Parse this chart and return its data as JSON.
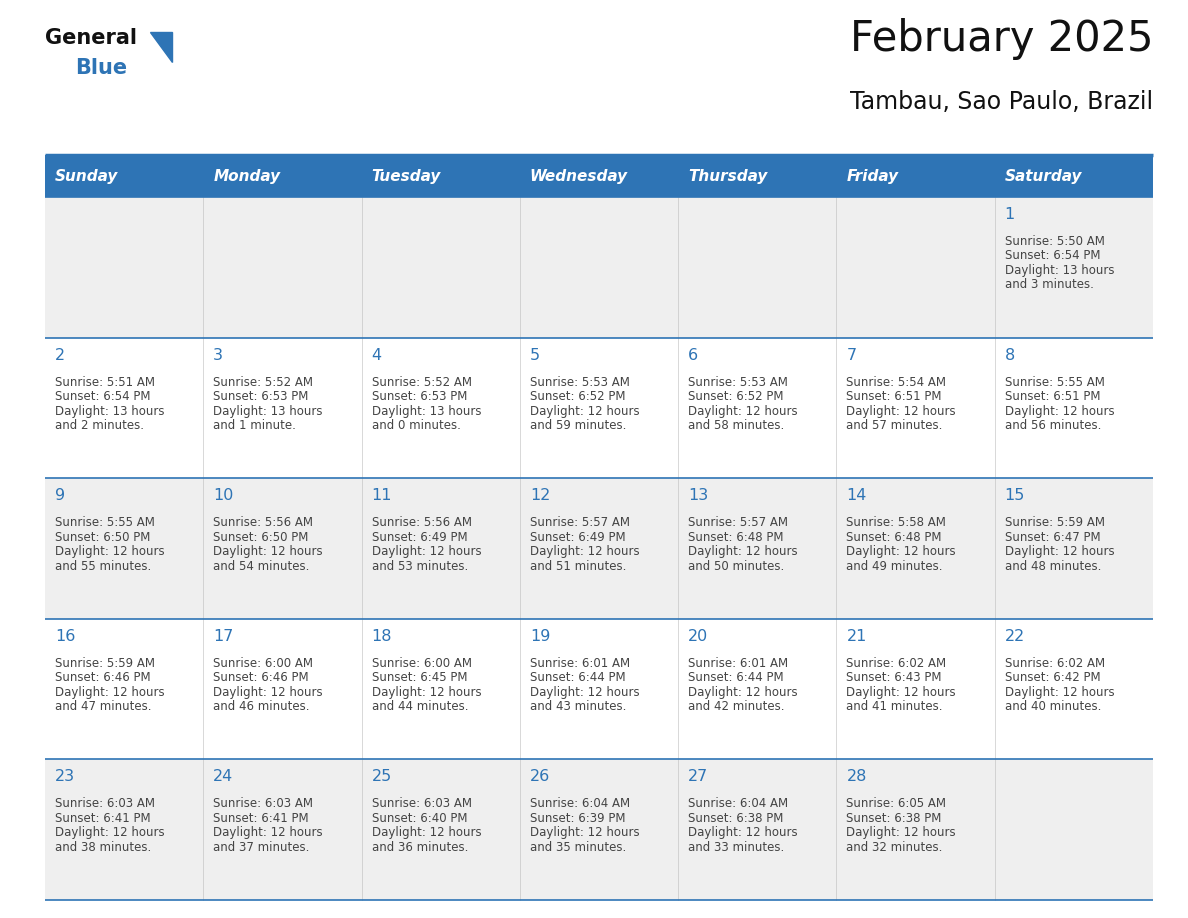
{
  "title": "February 2025",
  "subtitle": "Tambau, Sao Paulo, Brazil",
  "header_bg": "#2E74B5",
  "header_text_color": "#FFFFFF",
  "day_names": [
    "Sunday",
    "Monday",
    "Tuesday",
    "Wednesday",
    "Thursday",
    "Friday",
    "Saturday"
  ],
  "grid_line_color": "#2E74B5",
  "cell_bg_white": "#FFFFFF",
  "cell_bg_gray": "#EFEFEF",
  "text_color": "#444444",
  "date_color": "#2E74B5",
  "days": [
    {
      "day": 1,
      "col": 6,
      "row": 0,
      "sunrise": "5:50 AM",
      "sunset": "6:54 PM",
      "dl1": "Daylight: 13 hours",
      "dl2": "and 3 minutes."
    },
    {
      "day": 2,
      "col": 0,
      "row": 1,
      "sunrise": "5:51 AM",
      "sunset": "6:54 PM",
      "dl1": "Daylight: 13 hours",
      "dl2": "and 2 minutes."
    },
    {
      "day": 3,
      "col": 1,
      "row": 1,
      "sunrise": "5:52 AM",
      "sunset": "6:53 PM",
      "dl1": "Daylight: 13 hours",
      "dl2": "and 1 minute."
    },
    {
      "day": 4,
      "col": 2,
      "row": 1,
      "sunrise": "5:52 AM",
      "sunset": "6:53 PM",
      "dl1": "Daylight: 13 hours",
      "dl2": "and 0 minutes."
    },
    {
      "day": 5,
      "col": 3,
      "row": 1,
      "sunrise": "5:53 AM",
      "sunset": "6:52 PM",
      "dl1": "Daylight: 12 hours",
      "dl2": "and 59 minutes."
    },
    {
      "day": 6,
      "col": 4,
      "row": 1,
      "sunrise": "5:53 AM",
      "sunset": "6:52 PM",
      "dl1": "Daylight: 12 hours",
      "dl2": "and 58 minutes."
    },
    {
      "day": 7,
      "col": 5,
      "row": 1,
      "sunrise": "5:54 AM",
      "sunset": "6:51 PM",
      "dl1": "Daylight: 12 hours",
      "dl2": "and 57 minutes."
    },
    {
      "day": 8,
      "col": 6,
      "row": 1,
      "sunrise": "5:55 AM",
      "sunset": "6:51 PM",
      "dl1": "Daylight: 12 hours",
      "dl2": "and 56 minutes."
    },
    {
      "day": 9,
      "col": 0,
      "row": 2,
      "sunrise": "5:55 AM",
      "sunset": "6:50 PM",
      "dl1": "Daylight: 12 hours",
      "dl2": "and 55 minutes."
    },
    {
      "day": 10,
      "col": 1,
      "row": 2,
      "sunrise": "5:56 AM",
      "sunset": "6:50 PM",
      "dl1": "Daylight: 12 hours",
      "dl2": "and 54 minutes."
    },
    {
      "day": 11,
      "col": 2,
      "row": 2,
      "sunrise": "5:56 AM",
      "sunset": "6:49 PM",
      "dl1": "Daylight: 12 hours",
      "dl2": "and 53 minutes."
    },
    {
      "day": 12,
      "col": 3,
      "row": 2,
      "sunrise": "5:57 AM",
      "sunset": "6:49 PM",
      "dl1": "Daylight: 12 hours",
      "dl2": "and 51 minutes."
    },
    {
      "day": 13,
      "col": 4,
      "row": 2,
      "sunrise": "5:57 AM",
      "sunset": "6:48 PM",
      "dl1": "Daylight: 12 hours",
      "dl2": "and 50 minutes."
    },
    {
      "day": 14,
      "col": 5,
      "row": 2,
      "sunrise": "5:58 AM",
      "sunset": "6:48 PM",
      "dl1": "Daylight: 12 hours",
      "dl2": "and 49 minutes."
    },
    {
      "day": 15,
      "col": 6,
      "row": 2,
      "sunrise": "5:59 AM",
      "sunset": "6:47 PM",
      "dl1": "Daylight: 12 hours",
      "dl2": "and 48 minutes."
    },
    {
      "day": 16,
      "col": 0,
      "row": 3,
      "sunrise": "5:59 AM",
      "sunset": "6:46 PM",
      "dl1": "Daylight: 12 hours",
      "dl2": "and 47 minutes."
    },
    {
      "day": 17,
      "col": 1,
      "row": 3,
      "sunrise": "6:00 AM",
      "sunset": "6:46 PM",
      "dl1": "Daylight: 12 hours",
      "dl2": "and 46 minutes."
    },
    {
      "day": 18,
      "col": 2,
      "row": 3,
      "sunrise": "6:00 AM",
      "sunset": "6:45 PM",
      "dl1": "Daylight: 12 hours",
      "dl2": "and 44 minutes."
    },
    {
      "day": 19,
      "col": 3,
      "row": 3,
      "sunrise": "6:01 AM",
      "sunset": "6:44 PM",
      "dl1": "Daylight: 12 hours",
      "dl2": "and 43 minutes."
    },
    {
      "day": 20,
      "col": 4,
      "row": 3,
      "sunrise": "6:01 AM",
      "sunset": "6:44 PM",
      "dl1": "Daylight: 12 hours",
      "dl2": "and 42 minutes."
    },
    {
      "day": 21,
      "col": 5,
      "row": 3,
      "sunrise": "6:02 AM",
      "sunset": "6:43 PM",
      "dl1": "Daylight: 12 hours",
      "dl2": "and 41 minutes."
    },
    {
      "day": 22,
      "col": 6,
      "row": 3,
      "sunrise": "6:02 AM",
      "sunset": "6:42 PM",
      "dl1": "Daylight: 12 hours",
      "dl2": "and 40 minutes."
    },
    {
      "day": 23,
      "col": 0,
      "row": 4,
      "sunrise": "6:03 AM",
      "sunset": "6:41 PM",
      "dl1": "Daylight: 12 hours",
      "dl2": "and 38 minutes."
    },
    {
      "day": 24,
      "col": 1,
      "row": 4,
      "sunrise": "6:03 AM",
      "sunset": "6:41 PM",
      "dl1": "Daylight: 12 hours",
      "dl2": "and 37 minutes."
    },
    {
      "day": 25,
      "col": 2,
      "row": 4,
      "sunrise": "6:03 AM",
      "sunset": "6:40 PM",
      "dl1": "Daylight: 12 hours",
      "dl2": "and 36 minutes."
    },
    {
      "day": 26,
      "col": 3,
      "row": 4,
      "sunrise": "6:04 AM",
      "sunset": "6:39 PM",
      "dl1": "Daylight: 12 hours",
      "dl2": "and 35 minutes."
    },
    {
      "day": 27,
      "col": 4,
      "row": 4,
      "sunrise": "6:04 AM",
      "sunset": "6:38 PM",
      "dl1": "Daylight: 12 hours",
      "dl2": "and 33 minutes."
    },
    {
      "day": 28,
      "col": 5,
      "row": 4,
      "sunrise": "6:05 AM",
      "sunset": "6:38 PM",
      "dl1": "Daylight: 12 hours",
      "dl2": "and 32 minutes."
    }
  ],
  "logo_text1": "General",
  "logo_text2": "Blue",
  "logo_color1": "#111111",
  "logo_color2": "#2E74B5",
  "logo_triangle_color": "#2E74B5"
}
